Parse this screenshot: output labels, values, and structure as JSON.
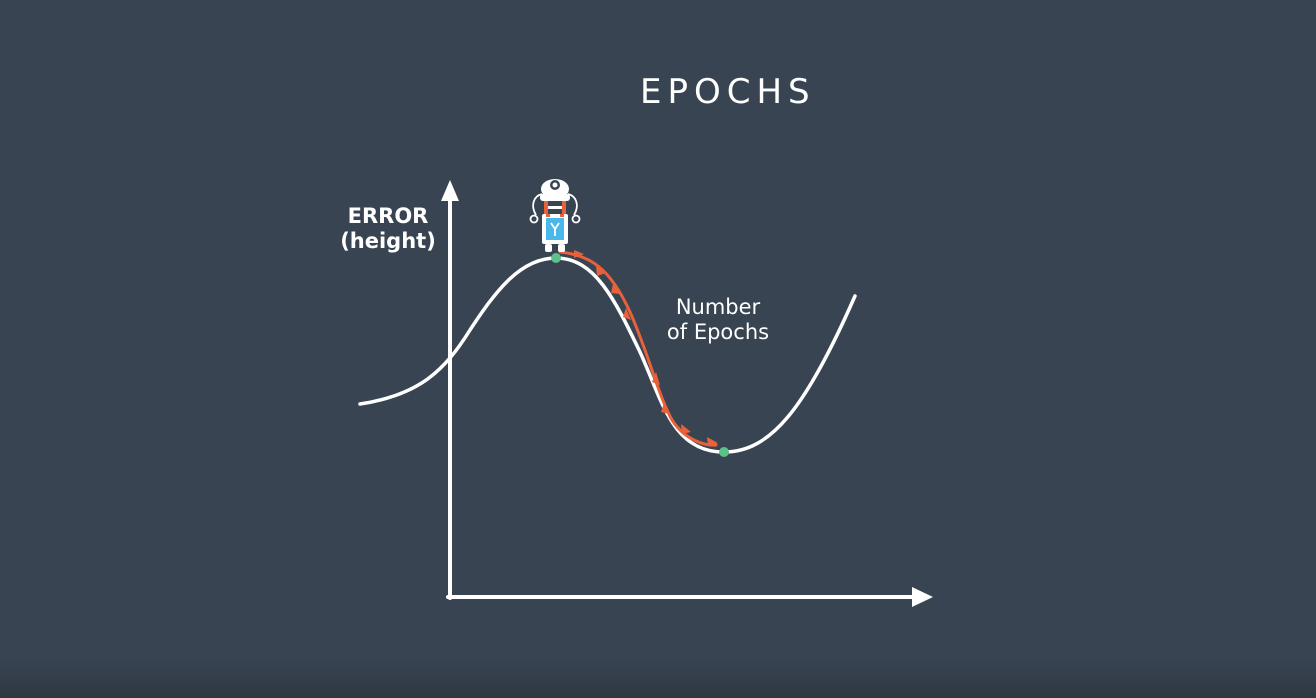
{
  "title": "EPOCHS",
  "y_axis_label_lines": [
    "ERROR",
    "(height)"
  ],
  "curve_label_lines": [
    "Number",
    "of Epochs"
  ],
  "icons": {
    "walker": "robot-icon",
    "start_point": "green-dot-icon",
    "end_point": "green-dot-icon",
    "descent_path": "orange-arrow-path"
  },
  "colors": {
    "background": "#384451",
    "axis_and_curve": "#ffffff",
    "descent_arrows": "#e8613c",
    "points": "#5cc08a",
    "robot_accent_red": "#e8613c",
    "robot_accent_blue": "#4ab8e8"
  }
}
